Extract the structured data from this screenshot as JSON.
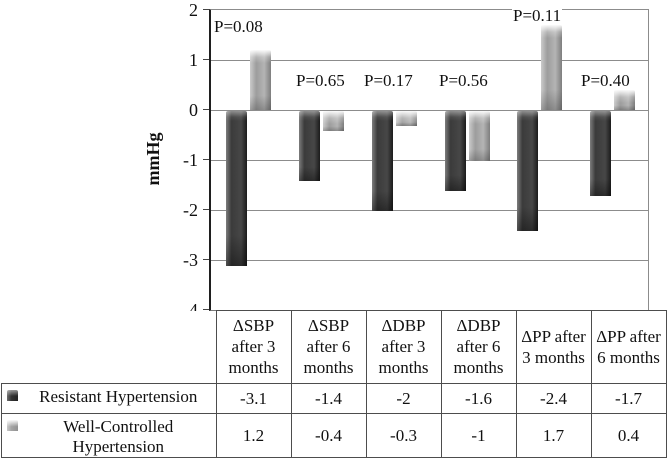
{
  "chart_data": {
    "type": "bar",
    "title": "",
    "ylabel": "mmHg",
    "xlabel": "",
    "ylim": [
      -4,
      2
    ],
    "yticks": [
      2,
      1,
      0,
      -1,
      -2,
      -3,
      -4
    ],
    "grid": true,
    "legend_position": "attached-data-table-left",
    "categories": [
      "ΔSBP after 3 months",
      "ΔSBP after 6 months",
      "ΔDBP after 3 months",
      "ΔDBP after 6 months",
      "ΔPP after 3 months",
      "ΔPP after 6 months"
    ],
    "series": [
      {
        "name": "Resistant Hypertension",
        "color": "#3b3b3b",
        "values": [
          -3.1,
          -1.4,
          -2,
          -1.6,
          -2.4,
          -1.7
        ]
      },
      {
        "name": "Well-Controlled Hypertension",
        "color": "#a8a8a8",
        "values": [
          1.2,
          -0.4,
          -0.3,
          -1,
          1.7,
          0.4
        ]
      }
    ],
    "p_values": [
      {
        "label": "P=0.08",
        "x": 2,
        "y": 8
      },
      {
        "label": "P=0.65",
        "x": 84,
        "y": 62
      },
      {
        "label": "P=0.17",
        "x": 152,
        "y": 62
      },
      {
        "label": "P=0.56",
        "x": 227,
        "y": 62
      },
      {
        "label": "P=0.11",
        "x": 301,
        "y": -3
      },
      {
        "label": "P=0.40",
        "x": 369,
        "y": 62
      }
    ]
  },
  "table": {
    "column_headers": [
      "ΔSBP after 3 months",
      "ΔSBP after 6 months",
      "ΔDBP after 3 months",
      "ΔDBP after 6 months",
      "ΔPP after 3 months",
      "ΔPP after 6 months"
    ],
    "rows": [
      {
        "label": "Resistant Hypertension",
        "values": [
          "-3.1",
          "-1.4",
          "-2",
          "-1.6",
          "-2.4",
          "-1.7"
        ]
      },
      {
        "label": "Well-Controlled Hypertension",
        "values": [
          "1.2",
          "-0.4",
          "-0.3",
          "-1",
          "1.7",
          "0.4"
        ]
      }
    ]
  }
}
